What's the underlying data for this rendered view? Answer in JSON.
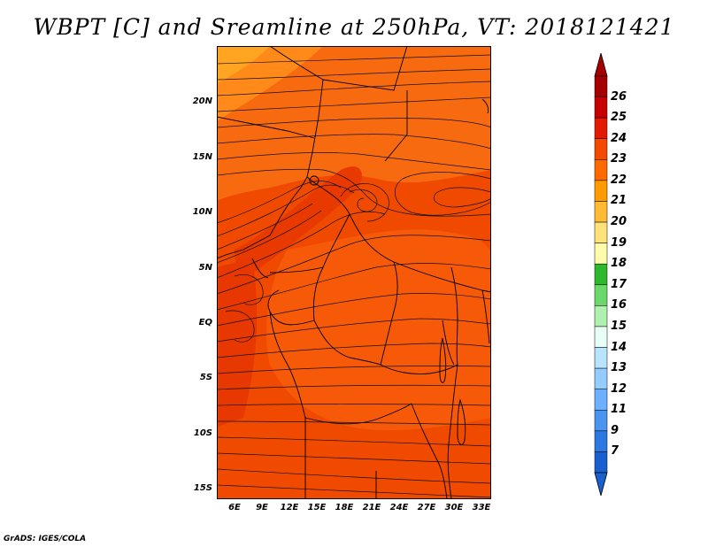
{
  "title": "WBPT [C] and Sreamline at 250hPa, VT: 2018121421",
  "credit": "GrADS: IGES/COLA",
  "y_axis": [
    "20N",
    "15N",
    "10N",
    "5N",
    "EQ",
    "5S",
    "10S",
    "15S"
  ],
  "x_axis": [
    "6E",
    "9E",
    "12E",
    "15E",
    "18E",
    "21E",
    "24E",
    "27E",
    "30E",
    "33E"
  ],
  "colorbar": {
    "labels": [
      "26",
      "25",
      "24",
      "23",
      "22",
      "21",
      "20",
      "19",
      "18",
      "17",
      "16",
      "15",
      "14",
      "13",
      "12",
      "11",
      "9",
      "7"
    ],
    "colors": [
      "#a50000",
      "#c60000",
      "#e31a00",
      "#f34a00",
      "#ff6a00",
      "#ff9a00",
      "#ffbb33",
      "#ffe27a",
      "#fffbaa",
      "#2eb82e",
      "#6cd86c",
      "#b0f0b0",
      "#e8fff8",
      "#b8e4ff",
      "#94ccff",
      "#6cb0ff",
      "#4b94f0",
      "#2a78e0",
      "#1a5fd0"
    ]
  },
  "palette": {
    "base": "#f04a00",
    "light": "#f86a10",
    "orange": "#ff8a1a",
    "yellow": "#ffa522",
    "dark": "#e23300"
  }
}
